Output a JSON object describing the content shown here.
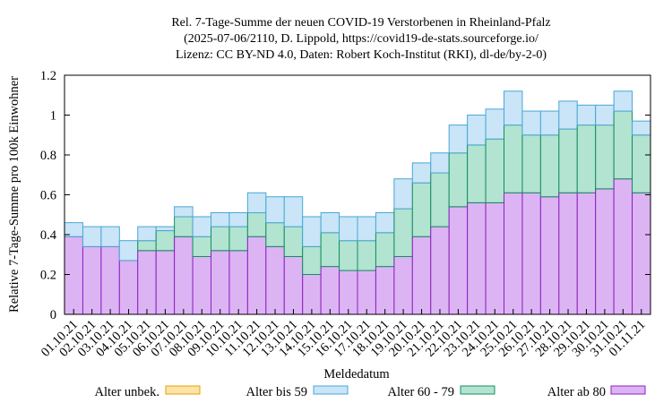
{
  "chart_data": {
    "type": "bar",
    "stacked": true,
    "title_lines": [
      "Rel. 7-Tage-Summe der neuen COVID-19 Verstorbenen in Rheinland-Pfalz",
      "(2025-07-06/2110, D. Lippold, https://covid19-de-stats.sourceforge.io/",
      "Lizenz: CC BY-ND 4.0, Daten: Robert Koch-Institut (RKI), dl-de/by-2-0)"
    ],
    "xlabel": "Meldedatum",
    "ylabel": "Relative 7-Tage-Summe pro 100k Einwohner",
    "ylim": [
      0,
      1.2
    ],
    "yticks": [
      "0",
      "0.2",
      "0.4",
      "0.6",
      "0.8",
      "1",
      "1.2"
    ],
    "grid": false,
    "legend_placement": "bottom",
    "categories": [
      "01.10.21",
      "02.10.21",
      "03.10.21",
      "04.10.21",
      "05.10.21",
      "06.10.21",
      "07.10.21",
      "08.10.21",
      "09.10.21",
      "10.10.21",
      "11.10.21",
      "12.10.21",
      "13.10.21",
      "14.10.21",
      "15.10.21",
      "16.10.21",
      "17.10.21",
      "18.10.21",
      "19.10.21",
      "20.10.21",
      "21.10.21",
      "22.10.21",
      "23.10.21",
      "24.10.21",
      "25.10.21",
      "26.10.21",
      "27.10.21",
      "28.10.21",
      "29.10.21",
      "30.10.21",
      "31.10.21",
      "01.11.21"
    ],
    "series": [
      {
        "name": "Alter unbek.",
        "fill": "#fde3a7",
        "stroke": "#e8a200",
        "values": [
          0,
          0,
          0,
          0,
          0,
          0,
          0,
          0,
          0,
          0,
          0,
          0,
          0,
          0,
          0,
          0,
          0,
          0,
          0,
          0,
          0,
          0,
          0,
          0,
          0,
          0,
          0,
          0,
          0,
          0,
          0,
          0
        ]
      },
      {
        "name": "Alter ab 80",
        "fill": "#dcb4f3",
        "stroke": "#8e1fc4",
        "values": [
          0.39,
          0.34,
          0.34,
          0.27,
          0.32,
          0.32,
          0.39,
          0.29,
          0.32,
          0.32,
          0.39,
          0.34,
          0.29,
          0.2,
          0.24,
          0.22,
          0.22,
          0.24,
          0.29,
          0.39,
          0.44,
          0.54,
          0.56,
          0.56,
          0.61,
          0.61,
          0.59,
          0.61,
          0.61,
          0.63,
          0.68,
          0.61
        ]
      },
      {
        "name": "Alter 60 - 79",
        "fill": "#b3e3d1",
        "stroke": "#12905e",
        "values": [
          0,
          0,
          0,
          0,
          0.05,
          0.1,
          0.1,
          0.1,
          0.12,
          0.12,
          0.12,
          0.12,
          0.15,
          0.14,
          0.17,
          0.15,
          0.15,
          0.17,
          0.24,
          0.27,
          0.27,
          0.27,
          0.29,
          0.32,
          0.34,
          0.29,
          0.31,
          0.32,
          0.34,
          0.32,
          0.34,
          0.29
        ]
      },
      {
        "name": "Alter bis 59",
        "fill": "#c9e5f7",
        "stroke": "#4aa6d6",
        "values": [
          0.07,
          0.1,
          0.1,
          0.1,
          0.07,
          0.02,
          0.05,
          0.1,
          0.07,
          0.07,
          0.1,
          0.13,
          0.15,
          0.15,
          0.1,
          0.12,
          0.12,
          0.1,
          0.15,
          0.1,
          0.1,
          0.14,
          0.15,
          0.15,
          0.17,
          0.12,
          0.12,
          0.14,
          0.1,
          0.1,
          0.1,
          0.07
        ]
      }
    ],
    "legend_order": [
      "Alter unbek.",
      "Alter bis 59",
      "Alter 60 - 79",
      "Alter ab 80"
    ]
  }
}
